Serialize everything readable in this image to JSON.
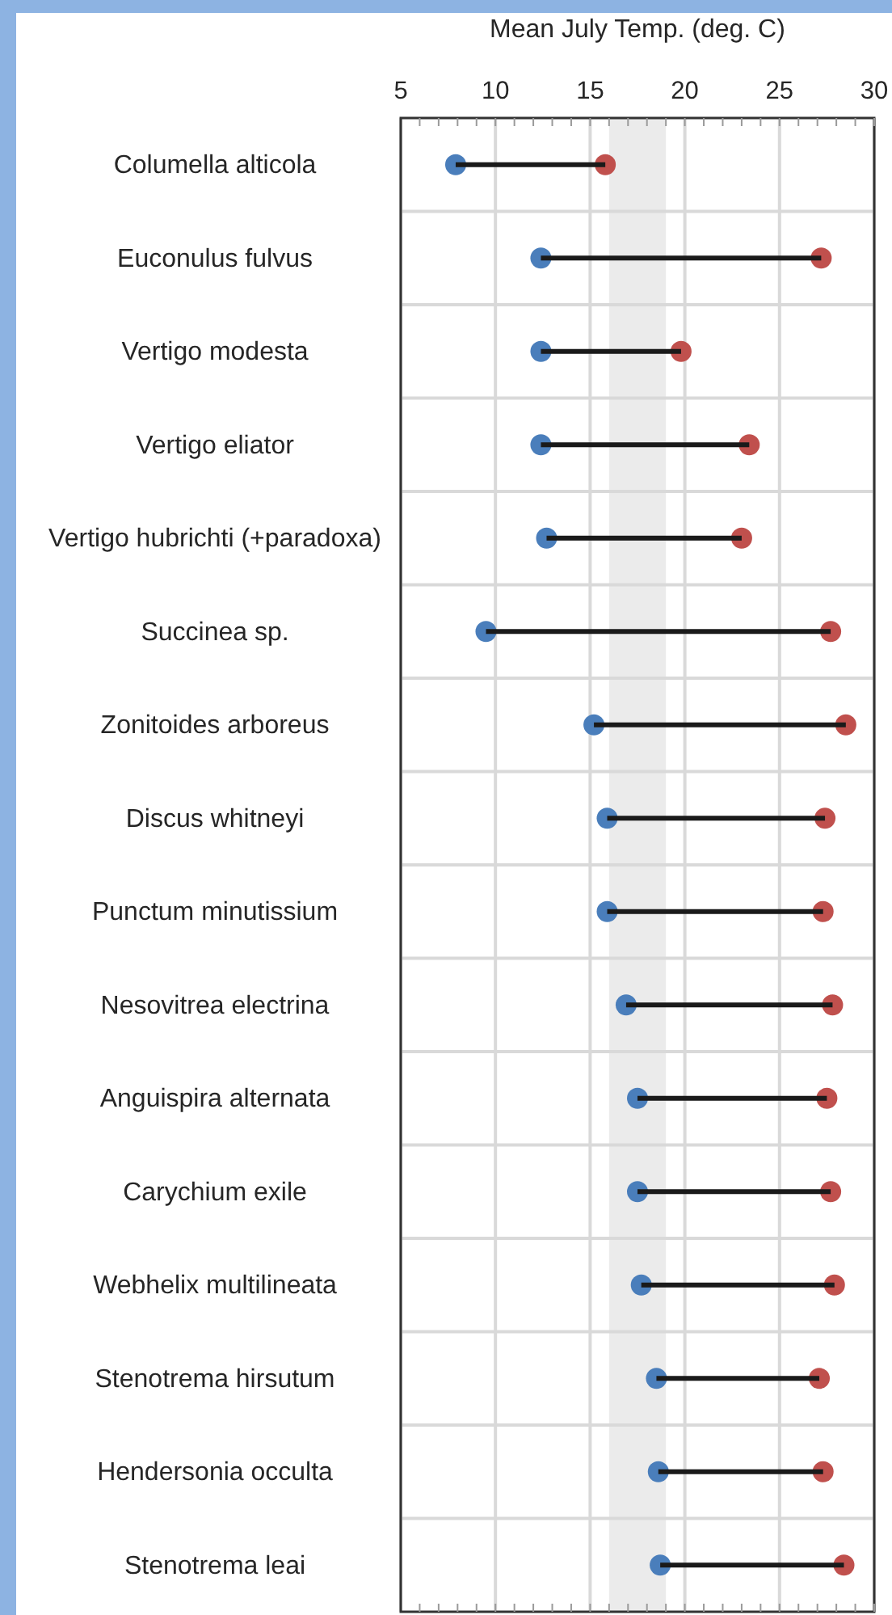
{
  "chart_data": {
    "type": "bar",
    "orientation": "horizontal",
    "xlabel": "Mean July Temp. (deg. C)",
    "categories": [
      "Columella alticola",
      "Euconulus fulvus",
      "Vertigo modesta",
      "Vertigo eliator",
      "Vertigo hubrichti (+paradoxa)",
      "Succinea sp.",
      "Zonitoides arboreus",
      "Discus whitneyi",
      "Punctum minutissium",
      "Nesovitrea electrina",
      "Anguispira alternata",
      "Carychium exile",
      "Webhelix multilineata",
      "Stenotrema hirsutum",
      "Hendersonia occulta",
      "Stenotrema leai"
    ],
    "series": [
      {
        "type": "bar",
        "color": "#1a1a1a",
        "base": [
          7.9,
          12.4,
          12.4,
          12.4,
          12.7,
          9.5,
          15.2,
          15.9,
          15.9,
          16.9,
          17.5,
          17.5,
          17.7,
          18.5,
          18.6,
          18.7
        ],
        "values": [
          7.9,
          14.8,
          7.4,
          11.0,
          10.3,
          18.2,
          13.3,
          11.5,
          11.4,
          10.9,
          10.0,
          10.2,
          10.2,
          8.6,
          8.7,
          9.7
        ]
      },
      {
        "type": "scatter",
        "color": "#4a7ebb",
        "values": [
          7.9,
          12.4,
          12.4,
          12.4,
          12.7,
          9.5,
          15.2,
          15.9,
          15.9,
          16.9,
          17.5,
          17.5,
          17.7,
          18.5,
          18.6,
          18.7
        ]
      },
      {
        "type": "scatter",
        "color": "#c0504d",
        "values": [
          15.8,
          27.2,
          19.8,
          23.4,
          23.0,
          27.7,
          28.5,
          27.4,
          27.3,
          27.8,
          27.5,
          27.7,
          27.9,
          27.1,
          27.3,
          28.4
        ]
      }
    ],
    "xlim": [
      5,
      30
    ],
    "xticks": [
      5,
      {
        "value": 6,
        "label": null
      },
      {
        "value": 7,
        "label": null
      },
      {
        "value": 8,
        "label": null
      },
      {
        "value": 9,
        "label": null
      },
      10,
      {
        "value": 11,
        "label": null
      },
      {
        "value": 12,
        "label": null
      },
      {
        "value": 13,
        "label": null
      },
      {
        "value": 14,
        "label": null
      },
      15,
      {
        "value": 16,
        "label": null
      },
      {
        "value": 17,
        "label": null
      },
      {
        "value": 18,
        "label": null
      },
      {
        "value": 19,
        "label": null
      },
      20,
      {
        "value": 21,
        "label": null
      },
      {
        "value": 22,
        "label": null
      },
      {
        "value": 23,
        "label": null
      },
      {
        "value": 24,
        "label": null
      },
      25,
      {
        "value": 26,
        "label": null
      },
      {
        "value": 27,
        "label": null
      },
      {
        "value": 28,
        "label": null
      },
      {
        "value": 29,
        "label": null
      },
      30
    ],
    "grid": true,
    "marker": "circle",
    "bands": [
      {
        "axis": "x",
        "from": 16,
        "to": 19,
        "color": "#ebebeb"
      }
    ]
  }
}
